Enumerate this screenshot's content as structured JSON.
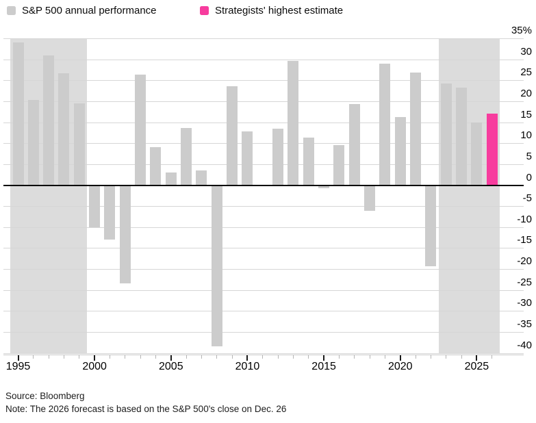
{
  "legend": [
    {
      "label": "S&P 500 annual performance",
      "color": "#cccccc"
    },
    {
      "label": "Strategists' highest estimate",
      "color": "#f73c9e"
    }
  ],
  "footer": {
    "source": "Source: Bloomberg",
    "note": "Note: The 2026 forecast is based on the S&P 500's close on Dec. 26"
  },
  "colors": {
    "bar": "#cccccc",
    "highlight": "#f73c9e",
    "band": "#dcdcdc",
    "gridline": "#d6d6d6",
    "zero_line": "#000000"
  },
  "chart_data": {
    "type": "bar",
    "title": "",
    "unit": "%",
    "categories": [
      1995,
      1996,
      1997,
      1998,
      1999,
      2000,
      2001,
      2002,
      2003,
      2004,
      2005,
      2006,
      2007,
      2008,
      2009,
      2010,
      2011,
      2012,
      2013,
      2014,
      2015,
      2016,
      2017,
      2018,
      2019,
      2020,
      2021,
      2022,
      2023,
      2024,
      2025,
      2026
    ],
    "values": [
      34.1,
      20.3,
      31.0,
      26.7,
      19.5,
      -10.1,
      -13.0,
      -23.4,
      26.4,
      9.0,
      3.0,
      13.6,
      3.5,
      -38.5,
      23.5,
      12.8,
      0.0,
      13.4,
      29.6,
      11.4,
      -0.7,
      9.5,
      19.4,
      -6.2,
      28.9,
      16.3,
      26.9,
      -19.4,
      24.2,
      23.3,
      15.0,
      17.0
    ],
    "series_note": "1995-2025 bars are 'S&P 500 annual performance'; 2026 bar is 'Strategists' highest estimate'",
    "highlight": {
      "year": 2026,
      "value": 17.0,
      "series": "Strategists' highest estimate"
    },
    "ylim": [
      -40,
      35
    ],
    "ytick_values": [
      35,
      30,
      25,
      20,
      15,
      10,
      5,
      0,
      -5,
      -10,
      -15,
      -20,
      -25,
      -30,
      -35,
      -40
    ],
    "ytick_labels": [
      "35%",
      "30",
      "25",
      "20",
      "15",
      "10",
      "5",
      "0",
      "-5",
      "-10",
      "-15",
      "-20",
      "-25",
      "-30",
      "-35",
      "-40"
    ],
    "xtick_labeled_years": [
      1995,
      2000,
      2005,
      2010,
      2015,
      2020,
      2025
    ],
    "shaded_year_ranges": [
      [
        1995,
        1999
      ],
      [
        2023,
        2026
      ]
    ],
    "grid": true,
    "legend_position": "top",
    "y_axis_side": "right"
  }
}
